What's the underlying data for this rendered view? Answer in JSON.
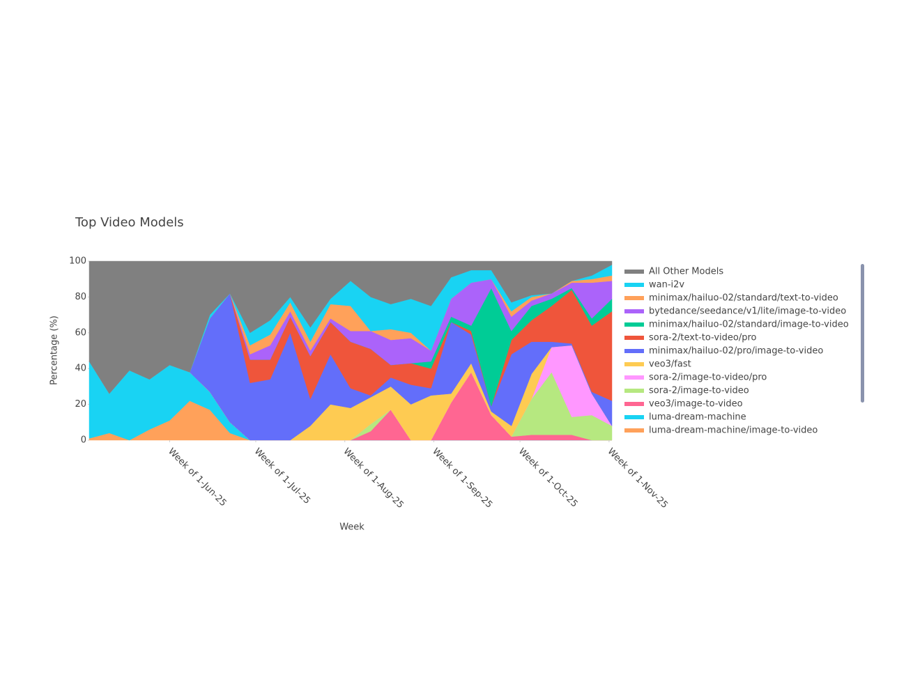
{
  "chart_data": {
    "type": "area",
    "stacked": true,
    "title": "Top Video Models",
    "x_label": "Week",
    "y_label": "Percentage (%)",
    "x": [
      "2025-05-04",
      "2025-05-11",
      "2025-05-18",
      "2025-05-25",
      "2025-06-01",
      "2025-06-08",
      "2025-06-15",
      "2025-06-22",
      "2025-06-29",
      "2025-07-06",
      "2025-07-13",
      "2025-07-20",
      "2025-07-27",
      "2025-08-03",
      "2025-08-10",
      "2025-08-17",
      "2025-08-24",
      "2025-08-31",
      "2025-09-07",
      "2025-09-14",
      "2025-09-21",
      "2025-09-28",
      "2025-10-05",
      "2025-10-12",
      "2025-10-19",
      "2025-10-26",
      "2025-11-02"
    ],
    "xlim": [
      "2025-05-04",
      "2025-11-02"
    ],
    "xticks": [
      {
        "value": "2025-06-01",
        "label": "Week of 1-Jun-25"
      },
      {
        "value": "2025-07-01",
        "label": "Week of 1-Jul-25"
      },
      {
        "value": "2025-08-01",
        "label": "Week of 1-Aug-25"
      },
      {
        "value": "2025-09-01",
        "label": "Week of 1-Sep-25"
      },
      {
        "value": "2025-10-01",
        "label": "Week of 1-Oct-25"
      },
      {
        "value": "2025-11-01",
        "label": "Week of 1-Nov-25"
      }
    ],
    "ylim": [
      0,
      100
    ],
    "yticks": [
      0,
      20,
      40,
      60,
      80,
      100
    ],
    "grid": false,
    "legend": "right",
    "series": [
      {
        "name": "All Other Models",
        "color": "#808080",
        "values": [
          56,
          74,
          61,
          66,
          58,
          62,
          30,
          18,
          40,
          33,
          20,
          37,
          21,
          11,
          20,
          24,
          21,
          25,
          9,
          5,
          5,
          23,
          19,
          18,
          11,
          8,
          2
        ]
      },
      {
        "name": "wan-i2v",
        "color": "#19d3f3",
        "values": [
          0,
          0,
          0,
          0,
          0,
          0,
          2,
          0,
          7,
          8,
          3,
          8,
          3,
          14,
          19,
          14,
          19,
          25,
          12,
          7,
          5,
          5,
          1,
          0,
          0,
          2,
          6
        ]
      },
      {
        "name": "minimax/hailuo-02/standard/text-to-video",
        "color": "#FFA15A",
        "values": [
          0,
          0,
          0,
          0,
          0,
          0,
          0,
          0,
          5,
          6,
          5,
          5,
          8,
          14,
          0,
          6,
          3,
          0,
          0,
          0,
          0,
          3,
          2,
          0,
          1,
          2,
          3
        ]
      },
      {
        "name": "bytedance/seedance/v1/lite/image-to-video",
        "color": "#ab63fa",
        "values": [
          0,
          0,
          0,
          0,
          0,
          0,
          0,
          0,
          3,
          8,
          3,
          3,
          2,
          6,
          10,
          14,
          14,
          6,
          10,
          24,
          5,
          8,
          3,
          3,
          3,
          20,
          10
        ]
      },
      {
        "name": "minimax/hailuo-02/standard/image-to-video",
        "color": "#00cc96",
        "values": [
          0,
          0,
          0,
          0,
          0,
          0,
          0,
          0,
          0,
          0,
          0,
          0,
          0,
          0,
          0,
          0,
          0,
          4,
          3,
          3,
          66,
          5,
          8,
          4,
          1,
          4,
          7
        ]
      },
      {
        "name": "sora-2/text-to-video/pro",
        "color": "#EF553B",
        "values": [
          0,
          0,
          0,
          0,
          0,
          0,
          0,
          0,
          13,
          11,
          9,
          24,
          18,
          26,
          26,
          7,
          12,
          11,
          0,
          2,
          0,
          8,
          12,
          20,
          30,
          37,
          50
        ]
      },
      {
        "name": "minimax/hailuo-02/pro/image-to-video",
        "color": "#636efa",
        "values": [
          0,
          0,
          0,
          0,
          0,
          0,
          41,
          72,
          32,
          34,
          60,
          15,
          28,
          11,
          1,
          5,
          11,
          4,
          40,
          16,
          3,
          40,
          18,
          3,
          1,
          1,
          14
        ]
      },
      {
        "name": "veo3/fast",
        "color": "#FECB52",
        "values": [
          0,
          0,
          0,
          0,
          0,
          0,
          0,
          0,
          0,
          0,
          0,
          8,
          20,
          18,
          15,
          13,
          20,
          25,
          5,
          5,
          2,
          6,
          14,
          0,
          0,
          0,
          0
        ]
      },
      {
        "name": "sora-2/image-to-video/pro",
        "color": "#FF97FF",
        "values": [
          0,
          0,
          0,
          0,
          0,
          0,
          0,
          0,
          0,
          0,
          0,
          0,
          0,
          0,
          0,
          0,
          0,
          0,
          0,
          0,
          0,
          0,
          0,
          14,
          40,
          12,
          0
        ]
      },
      {
        "name": "sora-2/image-to-video",
        "color": "#B6E880",
        "values": [
          0,
          0,
          0,
          0,
          0,
          0,
          0,
          0,
          0,
          0,
          0,
          0,
          0,
          0,
          4,
          0,
          0,
          0,
          0,
          0,
          0,
          0,
          20,
          35,
          10,
          14,
          8
        ]
      },
      {
        "name": "veo3/image-to-video",
        "color": "#FF6692",
        "values": [
          0,
          0,
          0,
          0,
          0,
          0,
          0,
          0,
          0,
          0,
          0,
          0,
          0,
          0,
          5,
          17,
          0,
          0,
          21,
          38,
          14,
          2,
          3,
          3,
          3,
          0,
          0
        ]
      },
      {
        "name": "luma-dream-machine",
        "color": "#19d3f3",
        "values": [
          43,
          22,
          39,
          28,
          31,
          16,
          10,
          6,
          0,
          0,
          0,
          0,
          0,
          0,
          0,
          0,
          0,
          0,
          0,
          0,
          0,
          0,
          0,
          0,
          0,
          0,
          0
        ]
      },
      {
        "name": "luma-dream-machine/image-to-video",
        "color": "#FFA15A",
        "values": [
          1,
          4,
          0,
          6,
          11,
          22,
          17,
          4,
          0,
          0,
          0,
          0,
          0,
          0,
          0,
          0,
          0,
          0,
          0,
          0,
          0,
          0,
          0,
          0,
          0,
          0,
          0
        ]
      }
    ]
  }
}
